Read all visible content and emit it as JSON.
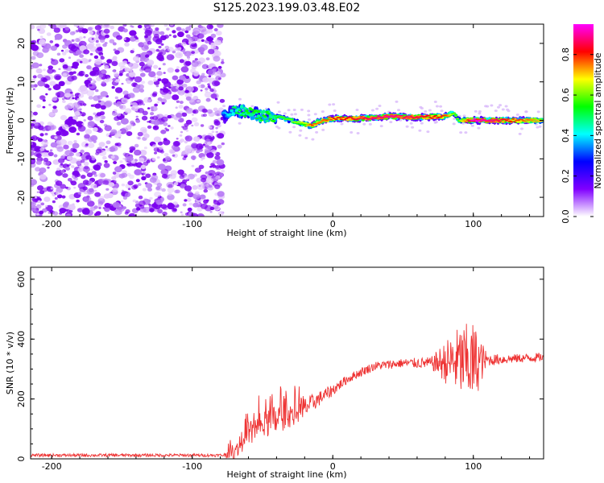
{
  "title": "S125.2023.199.03.48.E02",
  "chart_data": [
    {
      "type": "heatmap",
      "xlabel": "Height of straight line (km)",
      "ylabel": "Frequency (Hz)",
      "xlim": [
        -215,
        150
      ],
      "ylim": [
        -25,
        25
      ],
      "x_ticks": [
        -200,
        -100,
        0,
        100
      ],
      "y_ticks": [
        -20,
        -10,
        0,
        10,
        20
      ],
      "colorbar": {
        "label": "Normalized spectral amplitude",
        "range": [
          0,
          0.95
        ],
        "ticks": [
          0.0,
          0.2,
          0.4,
          0.6,
          0.8
        ],
        "colormap": [
          "#ffffff",
          "#8000ff",
          "#0000ff",
          "#00ffff",
          "#00ff00",
          "#ffff00",
          "#ff0000",
          "#ff00ff"
        ]
      },
      "noise_region_x": [
        -215,
        -78
      ],
      "ridge": {
        "x": [
          -78,
          -70,
          -60,
          -50,
          -40,
          -30,
          -20,
          -15,
          -10,
          0,
          20,
          40,
          60,
          80,
          86,
          90,
          100,
          120,
          150
        ],
        "freq_hz": [
          1,
          3,
          2,
          1,
          1,
          0,
          -1,
          -1.5,
          -0.3,
          0.5,
          0.5,
          1,
          0.8,
          1,
          2,
          0,
          0,
          0,
          0
        ],
        "peak_amplitude": [
          0.35,
          0.5,
          0.55,
          0.55,
          0.55,
          0.6,
          0.65,
          0.8,
          0.75,
          0.8,
          0.85,
          0.9,
          0.85,
          0.8,
          0.6,
          0.6,
          0.95,
          0.85,
          0.7
        ]
      }
    },
    {
      "type": "line",
      "xlabel": "Height of straight line (km)",
      "ylabel": "SNR (10 * v/v)",
      "xlim": [
        -215,
        150
      ],
      "ylim": [
        0,
        640
      ],
      "x_ticks": [
        -200,
        -100,
        0,
        100
      ],
      "y_ticks": [
        0,
        200,
        400,
        600
      ],
      "color": "#ee3333",
      "series": [
        {
          "trend_x": [
            -215,
            -78,
            -70,
            -60,
            -50,
            -40,
            -30,
            -20,
            -10,
            0,
            10,
            20,
            30,
            50,
            70,
            90,
            100,
            110,
            130,
            150
          ],
          "trend_y": [
            12,
            12,
            25,
            80,
            110,
            130,
            150,
            170,
            200,
            230,
            265,
            290,
            310,
            320,
            320,
            325,
            320,
            330,
            335,
            340
          ],
          "noise_amplitude": [
            5,
            5,
            30,
            45,
            50,
            55,
            45,
            35,
            25,
            20,
            15,
            15,
            15,
            15,
            20,
            120,
            140,
            20,
            15,
            15
          ]
        }
      ]
    }
  ]
}
